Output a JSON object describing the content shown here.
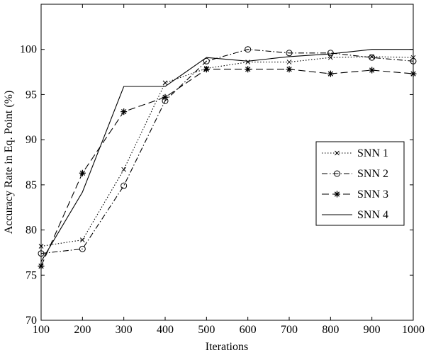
{
  "chart_data": {
    "type": "line",
    "title": "",
    "xlabel": "Iterations",
    "ylabel": "Accuracy Rate in Eq. Point (%)",
    "xlim": [
      100,
      1000
    ],
    "ylim": [
      70,
      105
    ],
    "x_ticks": [
      100,
      200,
      300,
      400,
      500,
      600,
      700,
      800,
      900,
      1000
    ],
    "y_ticks": [
      70,
      75,
      80,
      85,
      90,
      95,
      100
    ],
    "grid": false,
    "legend_position": "right",
    "x": [
      100,
      200,
      300,
      400,
      500,
      600,
      700,
      800,
      900,
      1000
    ],
    "series": [
      {
        "name": "SNN 1",
        "line_style": "dotted",
        "marker": "x",
        "values": [
          78.2,
          78.9,
          86.7,
          96.3,
          97.9,
          98.6,
          98.6,
          99.1,
          99.2,
          99.1
        ]
      },
      {
        "name": "SNN 2",
        "line_style": "dashdot",
        "marker": "circle",
        "values": [
          77.4,
          77.9,
          84.9,
          94.3,
          98.7,
          100.0,
          99.6,
          99.6,
          99.1,
          98.7
        ]
      },
      {
        "name": "SNN 3",
        "line_style": "dashed",
        "marker": "star",
        "values": [
          76.0,
          86.3,
          93.1,
          94.7,
          97.8,
          97.8,
          97.8,
          97.3,
          97.7,
          97.3
        ]
      },
      {
        "name": "SNN 4",
        "line_style": "solid",
        "marker": "none",
        "values": [
          76.5,
          84.2,
          95.9,
          95.9,
          99.1,
          98.7,
          99.2,
          99.5,
          100.0,
          100.0
        ]
      }
    ]
  }
}
